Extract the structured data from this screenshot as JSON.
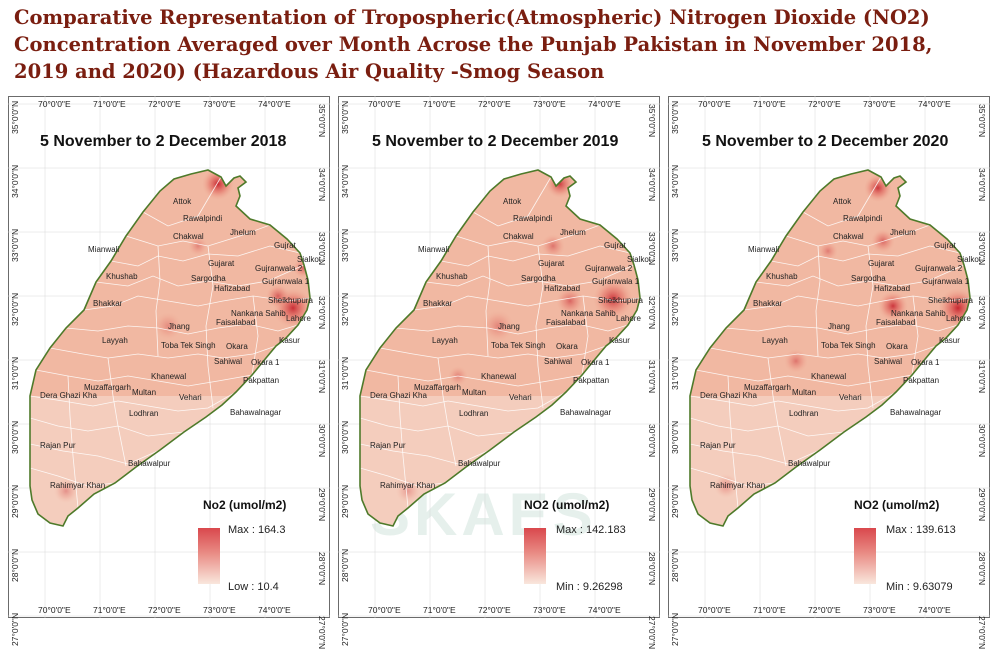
{
  "title_lines": [
    "Comparative Representation of Tropospheric(Atmospheric) Nitrogen Dioxide (NO2)",
    "Concentration Averaged over Month Acrose the Punjab Pakistan in November 2018,",
    "2019 and 2020) (Hazardous Air Quality -Smog Season"
  ],
  "lon_ticks": [
    "70°0'0\"E",
    "71°0'0\"E",
    "72°0'0\"E",
    "73°0'0\"E",
    "74°0'0\"E"
  ],
  "lat_ticks": [
    "35°0'0\"N",
    "34°0'0\"N",
    "33°0'0\"N",
    "32°0'0\"N",
    "31°0'0\"N",
    "30°0'0\"N",
    "29°0'0\"N",
    "28°0'0\"N",
    "27°0'0\"N"
  ],
  "cities": [
    "Attok",
    "Rawalpindi",
    "Chakwal",
    "Jhelum",
    "Gujrat",
    "Sialkot",
    "Mianwali",
    "Gujarat",
    "Gujranwala 2",
    "Gujranwala 1",
    "Khushab",
    "Sargodha",
    "Hafizabad",
    "Sheikhupura",
    "Bhakkar",
    "Nankana Sahib",
    "Lahore",
    "Faisalabad",
    "Jhang",
    "Kasur",
    "Layyah",
    "Toba Tek Singh",
    "Okara",
    "Sahiwal",
    "Okara 1",
    "Khanewal",
    "Muzaffargarh",
    "Multan",
    "Pakpattan",
    "Dera Ghazi Kha",
    "Vehari",
    "Lodhran",
    "Bahawalnagar",
    "Rajan Pur",
    "Bahawalpur",
    "Rahimyar Khan"
  ],
  "panels": [
    {
      "title": "5 November  to 2 December 2018",
      "legend_title": "No2 (umol/m2)",
      "max_label": "Max : 164.3",
      "min_label": "Low : 10.4",
      "max_value": 164.3,
      "min_value": 10.4
    },
    {
      "title": "5 November to 2 December 2019",
      "legend_title": "NO2 (umol/m2)",
      "max_label": "Max : 142.183",
      "min_label": "Min : 9.26298",
      "max_value": 142.183,
      "min_value": 9.26298
    },
    {
      "title": "5 November to 2 December 2020",
      "legend_title": "NO2 (umol/m2)",
      "max_label": "Max : 139.613",
      "min_label": "Min : 9.63079",
      "max_value": 139.613,
      "min_value": 9.63079
    }
  ],
  "watermark": "SKAES",
  "colors": {
    "title": "#7a1e10",
    "border": "#4e7a2a",
    "low": "#f9e7dd",
    "mid": "#eea58f",
    "high": "#c51f2a"
  }
}
